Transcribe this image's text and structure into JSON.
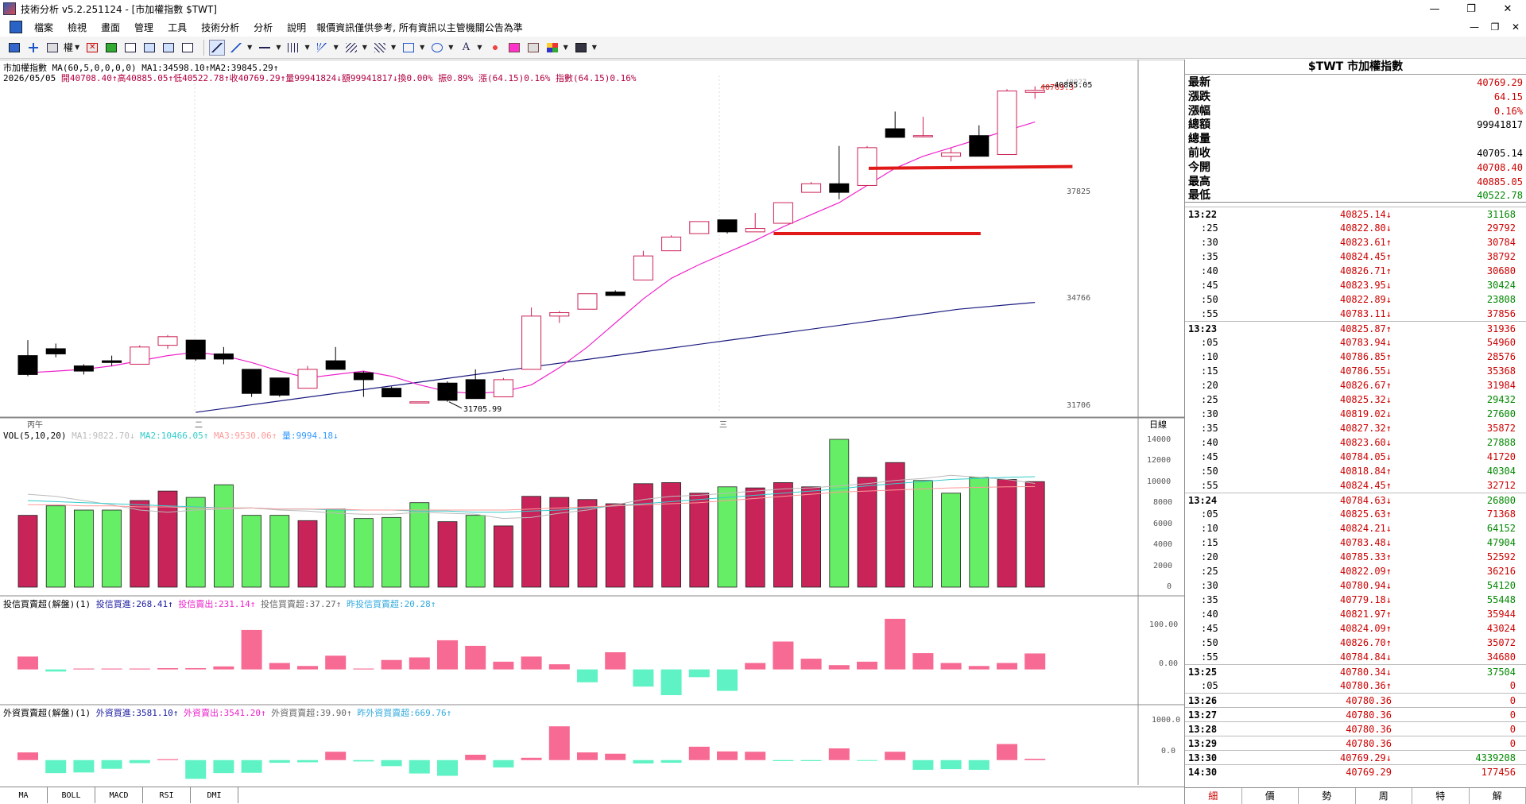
{
  "window": {
    "title": "技術分析 v5.2.251124 - [市加權指數 $TWT]",
    "controls": [
      "—",
      "❐",
      "✕"
    ]
  },
  "menu": {
    "items": [
      "檔案",
      "檢視",
      "畫面",
      "管理",
      "工具",
      "技術分析",
      "分析",
      "說明"
    ],
    "note": "報價資訊僅供參考, 所有資訊以主管機關公告為準",
    "mdi_controls": [
      "—",
      "❐",
      "✕"
    ]
  },
  "toolbar": {
    "label_quan": "權"
  },
  "chart": {
    "header_line1": "市加權指數 MA(60,5,0,0,0,0) MA1:34598.10↑MA2:39845.29↑",
    "date": "2026/05/05",
    "ohlc": "開40708.40↑高40885.05↑低40522.78↑收40769.29↑量99941824↓額99941817↓換0.00% 振0.89% 漲(64.15)0.16% 指數(64.15)0.16%",
    "price_axis": [
      "40769.3",
      "37825",
      "34766",
      "31706"
    ],
    "price_axis_top": "40927",
    "high_label": "40885.05",
    "low_label": "31705.99",
    "time_labels": [
      "丙午",
      "二",
      "三"
    ],
    "time_axis_right": "日線",
    "vol_header": "VOL(5,10,20)",
    "vol_ma1": "MA1:9822.70↓",
    "vol_ma2": "MA2:10466.05↑",
    "vol_ma3": "MA3:9530.06↑",
    "vol_qty": "量:9994.18↓",
    "vol_axis": [
      "14000",
      "12000",
      "10000",
      "8000",
      "6000",
      "4000",
      "2000",
      "0"
    ],
    "inv_header": "投信買賣超(解盤)(1)",
    "inv_buy": "投信買進:268.41↑",
    "inv_sell": "投信賣出:231.14↑",
    "inv_net": "投信買賣超:37.27↑",
    "inv_prev": "昨投信買賣超:20.28↑",
    "inv_axis": [
      "100.00",
      "0.00"
    ],
    "for_header": "外資買賣超(解盤)(1)",
    "for_buy": "外資買進:3581.10↑",
    "for_sell": "外資賣出:3541.20↑",
    "for_net": "外資買賣超:39.90↑",
    "for_prev": "昨外資買賣超:669.76↑",
    "for_axis": [
      "1000.0",
      "0.0"
    ]
  },
  "chart_data": {
    "type": "candlestick",
    "price_range": [
      31400,
      41200
    ],
    "candles": [
      [
        33050,
        33500,
        32450,
        32500
      ],
      [
        33250,
        33400,
        33000,
        33100
      ],
      [
        32750,
        32800,
        32500,
        32600
      ],
      [
        32900,
        33050,
        32750,
        32850
      ],
      [
        32800,
        33350,
        32800,
        33300
      ],
      [
        33350,
        33650,
        33250,
        33600
      ],
      [
        33500,
        33500,
        32900,
        32950
      ],
      [
        33100,
        33300,
        32800,
        32950
      ],
      [
        32650,
        32650,
        31850,
        31950
      ],
      [
        32400,
        32400,
        31850,
        31900
      ],
      [
        32100,
        32750,
        32100,
        32650
      ],
      [
        32900,
        33300,
        32650,
        32650
      ],
      [
        32550,
        32600,
        31850,
        32350
      ],
      [
        32100,
        32150,
        31850,
        31850
      ],
      [
        31700,
        31700,
        31700,
        31706
      ],
      [
        32250,
        32300,
        31705.99,
        31750
      ],
      [
        32350,
        32650,
        31800,
        31800
      ],
      [
        31850,
        32400,
        31850,
        32350
      ],
      [
        32650,
        34450,
        32650,
        34200
      ],
      [
        34200,
        34350,
        34000,
        34300
      ],
      [
        34400,
        34850,
        34400,
        34850
      ],
      [
        34900,
        34950,
        34800,
        34800
      ],
      [
        35250,
        36100,
        35250,
        35950
      ],
      [
        36100,
        36550,
        36100,
        36500
      ],
      [
        36600,
        36950,
        36600,
        36950
      ],
      [
        37000,
        37000,
        36600,
        36650
      ],
      [
        36650,
        37200,
        36650,
        36750
      ],
      [
        36900,
        37450,
        36900,
        37500
      ],
      [
        37800,
        38100,
        37800,
        38050
      ],
      [
        38050,
        39150,
        37600,
        37800
      ],
      [
        38000,
        39150,
        38000,
        39100
      ],
      [
        39650,
        40150,
        39400,
        39400
      ],
      [
        39450,
        40000,
        39400,
        39450
      ],
      [
        38850,
        39100,
        38700,
        38950
      ],
      [
        39450,
        39750,
        38850,
        38850
      ],
      [
        38900,
        40800,
        38900,
        40750
      ],
      [
        40708.4,
        40885.05,
        40522.78,
        40769.29
      ]
    ],
    "ma1": [
      31400,
      31700,
      32000,
      32300,
      32600,
      32900,
      33200,
      33500,
      33800,
      34100,
      34400,
      34598.1
    ],
    "ma2": [
      32550,
      32600,
      32650,
      32750,
      32900,
      33050,
      33150,
      33050,
      32850,
      32600,
      32400,
      32500,
      32600,
      32450,
      32200,
      32000,
      31950,
      32000,
      32200,
      32700,
      33300,
      34000,
      34700,
      35300,
      35700,
      36050,
      36400,
      36800,
      37150,
      37500,
      38000,
      38500,
      38850,
      39100,
      39350,
      39600,
      39845.29
    ],
    "volume": {
      "range": [
        0,
        14000
      ],
      "values": [
        6800,
        7700,
        7300,
        7300,
        8200,
        9100,
        8500,
        9700,
        6800,
        6800,
        6300,
        7400,
        6500,
        6600,
        8000,
        6200,
        6800,
        5800,
        8600,
        8500,
        8300,
        7900,
        9800,
        9900,
        8900,
        9500,
        9400,
        9900,
        9500,
        14000,
        10400,
        11800,
        10100,
        8900,
        10400,
        10200,
        9994.18
      ],
      "up": [
        true,
        false,
        false,
        false,
        true,
        true,
        false,
        false,
        false,
        false,
        true,
        false,
        false,
        false,
        false,
        true,
        false,
        true,
        true,
        true,
        true,
        true,
        true,
        true,
        true,
        false,
        true,
        true,
        true,
        false,
        true,
        true,
        false,
        false,
        false,
        true,
        true
      ],
      "ma5": [
        8800,
        8600,
        8200,
        7800,
        7300,
        7100,
        7300,
        7400,
        7500,
        7300,
        7200,
        7000,
        6900,
        6900,
        7100,
        7000,
        6900,
        6500,
        6600,
        7000,
        7300,
        7800,
        8300,
        8600,
        8700,
        8900,
        9100,
        9300,
        9400,
        9600,
        9800,
        10100,
        10300,
        10600,
        10400,
        10200,
        9822.7
      ],
      "ma10": [
        8200,
        8100,
        8000,
        7900,
        7800,
        7700,
        7600,
        7500,
        7500,
        7400,
        7400,
        7300,
        7300,
        7300,
        7200,
        7200,
        7100,
        7100,
        7200,
        7300,
        7500,
        7700,
        7900,
        8100,
        8300,
        8500,
        8700,
        8900,
        9100,
        9300,
        9600,
        9800,
        10000,
        10200,
        10300,
        10400,
        10466.05
      ],
      "ma20": [
        7800,
        7800,
        7700,
        7700,
        7600,
        7600,
        7500,
        7500,
        7500,
        7400,
        7400,
        7400,
        7300,
        7300,
        7300,
        7300,
        7300,
        7300,
        7400,
        7500,
        7600,
        7700,
        7800,
        7900,
        8000,
        8200,
        8400,
        8600,
        8800,
        9000,
        9100,
        9200,
        9300,
        9400,
        9450,
        9500,
        9530.06
      ]
    },
    "institutional": {
      "range": [
        -60,
        140
      ],
      "values": [
        30,
        -5,
        2,
        2,
        2,
        3,
        3,
        7,
        92,
        15,
        8,
        32,
        2,
        22,
        28,
        68,
        55,
        18,
        30,
        12,
        -30,
        40,
        -40,
        -60,
        -18,
        -50,
        15,
        65,
        25,
        10,
        18,
        118,
        38,
        15,
        8,
        15,
        37.27
      ]
    },
    "foreign": {
      "range": [
        -600,
        1300
      ],
      "values": [
        230,
        -390,
        -370,
        -260,
        -90,
        30,
        -560,
        -390,
        -380,
        -80,
        -65,
        250,
        -40,
        -180,
        -400,
        -470,
        160,
        -220,
        70,
        1010,
        230,
        190,
        -100,
        -80,
        400,
        260,
        250,
        -30,
        -30,
        350,
        -10,
        250,
        -290,
        -270,
        -290,
        480,
        39.9
      ]
    }
  },
  "right_panel": {
    "title": "$TWT 市加權指數",
    "quote": [
      {
        "label": "最新",
        "value": "40769.29",
        "color": "#cc0000"
      },
      {
        "label": "漲跌",
        "value": "64.15",
        "color": "#cc0000"
      },
      {
        "label": "漲幅",
        "value": "0.16%",
        "color": "#cc0000"
      },
      {
        "label": "總額",
        "value": "99941817",
        "color": "#000000"
      },
      {
        "label": "總量",
        "value": "",
        "color": "#000000"
      },
      {
        "label": "前收",
        "value": "40705.14",
        "color": "#000000"
      },
      {
        "label": "今開",
        "value": "40708.40",
        "color": "#cc0000"
      },
      {
        "label": "最高",
        "value": "40885.05",
        "color": "#cc0000"
      },
      {
        "label": "最低",
        "value": "40522.78",
        "color": "#008800"
      }
    ],
    "ticks": [
      {
        "time": "13:22",
        "major": true,
        "price": "40825.14↓",
        "vol": "31168",
        "vc": "#008800"
      },
      {
        "time": ":25",
        "major": false,
        "price": "40822.80↓",
        "vol": "29792",
        "vc": "#cc0000"
      },
      {
        "time": ":30",
        "major": false,
        "price": "40823.61↑",
        "vol": "30784",
        "vc": "#cc0000"
      },
      {
        "time": ":35",
        "major": false,
        "price": "40824.45↑",
        "vol": "38792",
        "vc": "#cc0000"
      },
      {
        "time": ":40",
        "major": false,
        "price": "40826.71↑",
        "vol": "30680",
        "vc": "#cc0000"
      },
      {
        "time": ":45",
        "major": false,
        "price": "40823.95↓",
        "vol": "30424",
        "vc": "#008800"
      },
      {
        "time": ":50",
        "major": false,
        "price": "40822.89↓",
        "vol": "23808",
        "vc": "#008800"
      },
      {
        "time": ":55",
        "major": false,
        "price": "40783.11↓",
        "vol": "37856",
        "vc": "#cc0000"
      },
      {
        "time": "13:23",
        "major": true,
        "price": "40825.87↑",
        "vol": "31936",
        "vc": "#cc0000"
      },
      {
        "time": ":05",
        "major": false,
        "price": "40783.94↓",
        "vol": "54960",
        "vc": "#cc0000"
      },
      {
        "time": ":10",
        "major": false,
        "price": "40786.85↑",
        "vol": "28576",
        "vc": "#cc0000"
      },
      {
        "time": ":15",
        "major": false,
        "price": "40786.55↓",
        "vol": "35368",
        "vc": "#cc0000"
      },
      {
        "time": ":20",
        "major": false,
        "price": "40826.67↑",
        "vol": "31984",
        "vc": "#cc0000"
      },
      {
        "time": ":25",
        "major": false,
        "price": "40825.32↓",
        "vol": "29432",
        "vc": "#008800"
      },
      {
        "time": ":30",
        "major": false,
        "price": "40819.02↓",
        "vol": "27600",
        "vc": "#008800"
      },
      {
        "time": ":35",
        "major": false,
        "price": "40827.32↑",
        "vol": "35872",
        "vc": "#cc0000"
      },
      {
        "time": ":40",
        "major": false,
        "price": "40823.60↓",
        "vol": "27888",
        "vc": "#008800"
      },
      {
        "time": ":45",
        "major": false,
        "price": "40784.05↓",
        "vol": "41720",
        "vc": "#cc0000"
      },
      {
        "time": ":50",
        "major": false,
        "price": "40818.84↑",
        "vol": "40304",
        "vc": "#008800"
      },
      {
        "time": ":55",
        "major": false,
        "price": "40824.45↑",
        "vol": "32712",
        "vc": "#cc0000"
      },
      {
        "time": "13:24",
        "major": true,
        "price": "40784.63↓",
        "vol": "26800",
        "vc": "#008800"
      },
      {
        "time": ":05",
        "major": false,
        "price": "40825.63↑",
        "vol": "71368",
        "vc": "#cc0000"
      },
      {
        "time": ":10",
        "major": false,
        "price": "40824.21↓",
        "vol": "64152",
        "vc": "#008800"
      },
      {
        "time": ":15",
        "major": false,
        "price": "40783.48↓",
        "vol": "47904",
        "vc": "#008800"
      },
      {
        "time": ":20",
        "major": false,
        "price": "40785.33↑",
        "vol": "52592",
        "vc": "#cc0000"
      },
      {
        "time": ":25",
        "major": false,
        "price": "40822.09↑",
        "vol": "36216",
        "vc": "#cc0000"
      },
      {
        "time": ":30",
        "major": false,
        "price": "40780.94↓",
        "vol": "54120",
        "vc": "#008800"
      },
      {
        "time": ":35",
        "major": false,
        "price": "40779.18↓",
        "vol": "55448",
        "vc": "#008800"
      },
      {
        "time": ":40",
        "major": false,
        "price": "40821.97↑",
        "vol": "35944",
        "vc": "#cc0000"
      },
      {
        "time": ":45",
        "major": false,
        "price": "40824.09↑",
        "vol": "43024",
        "vc": "#cc0000"
      },
      {
        "time": ":50",
        "major": false,
        "price": "40826.70↑",
        "vol": "35072",
        "vc": "#cc0000"
      },
      {
        "time": ":55",
        "major": false,
        "price": "40784.84↓",
        "vol": "34680",
        "vc": "#cc0000"
      },
      {
        "time": "13:25",
        "major": true,
        "price": "40780.34↓",
        "vol": "37504",
        "vc": "#008800"
      },
      {
        "time": ":05",
        "major": false,
        "price": "40780.36↑",
        "vol": "0",
        "vc": "#cc0000"
      },
      {
        "time": "13:26",
        "major": true,
        "price": "40780.36",
        "vol": "0",
        "vc": "#cc0000"
      },
      {
        "time": "13:27",
        "major": true,
        "price": "40780.36",
        "vol": "0",
        "vc": "#cc0000"
      },
      {
        "time": "13:28",
        "major": true,
        "price": "40780.36",
        "vol": "0",
        "vc": "#cc0000"
      },
      {
        "time": "13:29",
        "major": true,
        "price": "40780.36",
        "vol": "0",
        "vc": "#cc0000"
      },
      {
        "time": "13:30",
        "major": true,
        "price": "40769.29↓",
        "vol": "4339208",
        "vc": "#008800"
      },
      {
        "time": "14:30",
        "major": true,
        "price": "40769.29",
        "vol": "177456",
        "vc": "#cc0000"
      }
    ],
    "tabs": [
      "細",
      "價",
      "勢",
      "周",
      "特",
      "解"
    ]
  },
  "bottom_tabs": [
    "MA",
    "BOLL",
    "MACD",
    "RSI",
    "DMI"
  ],
  "colors": {
    "up": "#cc2255",
    "down": "#000000",
    "vol_up": "#c8245a",
    "vol_down": "#66ee66",
    "inst_pos": "#f76a93",
    "inst_neg": "#5ef2c4",
    "ma1": "#1a1a80",
    "ma2": "#ee22cc",
    "support": "#e01818"
  }
}
